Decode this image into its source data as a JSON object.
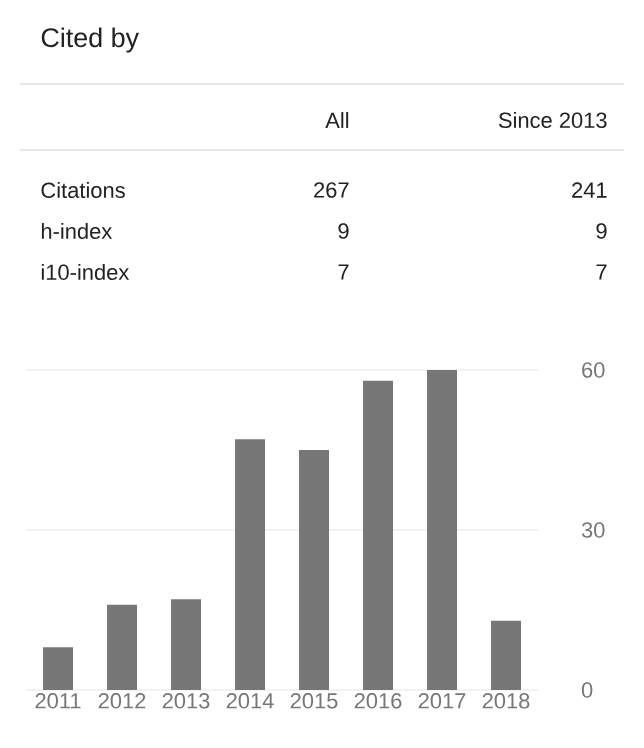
{
  "chart_data": {
    "type": "bar",
    "title": "Cited by",
    "categories": [
      "2011",
      "2012",
      "2013",
      "2014",
      "2015",
      "2016",
      "2017",
      "2018"
    ],
    "values": [
      8,
      16,
      17,
      47,
      45,
      58,
      60,
      13
    ],
    "color": "#777777",
    "ylim": [
      0,
      60
    ],
    "yticks": [
      0,
      30,
      60
    ],
    "grid": "y",
    "annotations": [
      "All",
      "Since 2013",
      "Citations",
      "267",
      "241",
      "h-index",
      "9",
      "9",
      "i10-index",
      "7",
      "7"
    ]
  }
}
